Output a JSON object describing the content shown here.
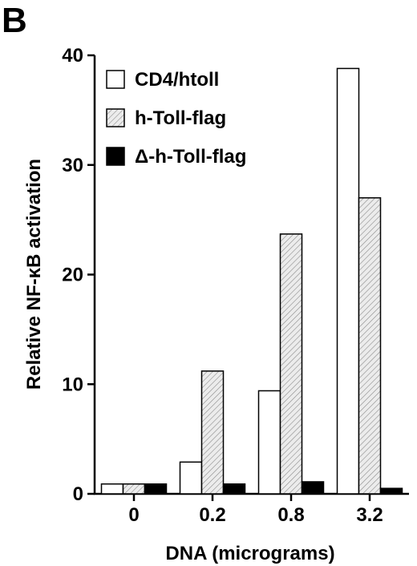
{
  "panel_label": "B",
  "chart_data": {
    "type": "bar",
    "categories": [
      "0",
      "0.2",
      "0.8",
      "3.2"
    ],
    "series": [
      {
        "name": "CD4/htoll",
        "style": "white",
        "values": [
          0.9,
          2.9,
          9.4,
          38.8
        ]
      },
      {
        "name": "h-Toll-flag",
        "style": "hatched",
        "values": [
          0.9,
          11.2,
          23.7,
          27.0
        ]
      },
      {
        "name": "Δ-h-Toll-flag",
        "style": "black",
        "values": [
          0.9,
          0.9,
          1.1,
          0.5
        ]
      }
    ],
    "xlabel": "DNA (micrograms)",
    "ylabel": "Relative NF-κB activation",
    "ylim": [
      0,
      40
    ],
    "yticks": [
      0,
      10,
      20,
      30,
      40
    ],
    "grid": false,
    "legend_position": "top-left",
    "colors": {
      "white": "#ffffff",
      "hatched": "#e8e8e8",
      "black": "#000000",
      "stroke": "#000000"
    }
  }
}
